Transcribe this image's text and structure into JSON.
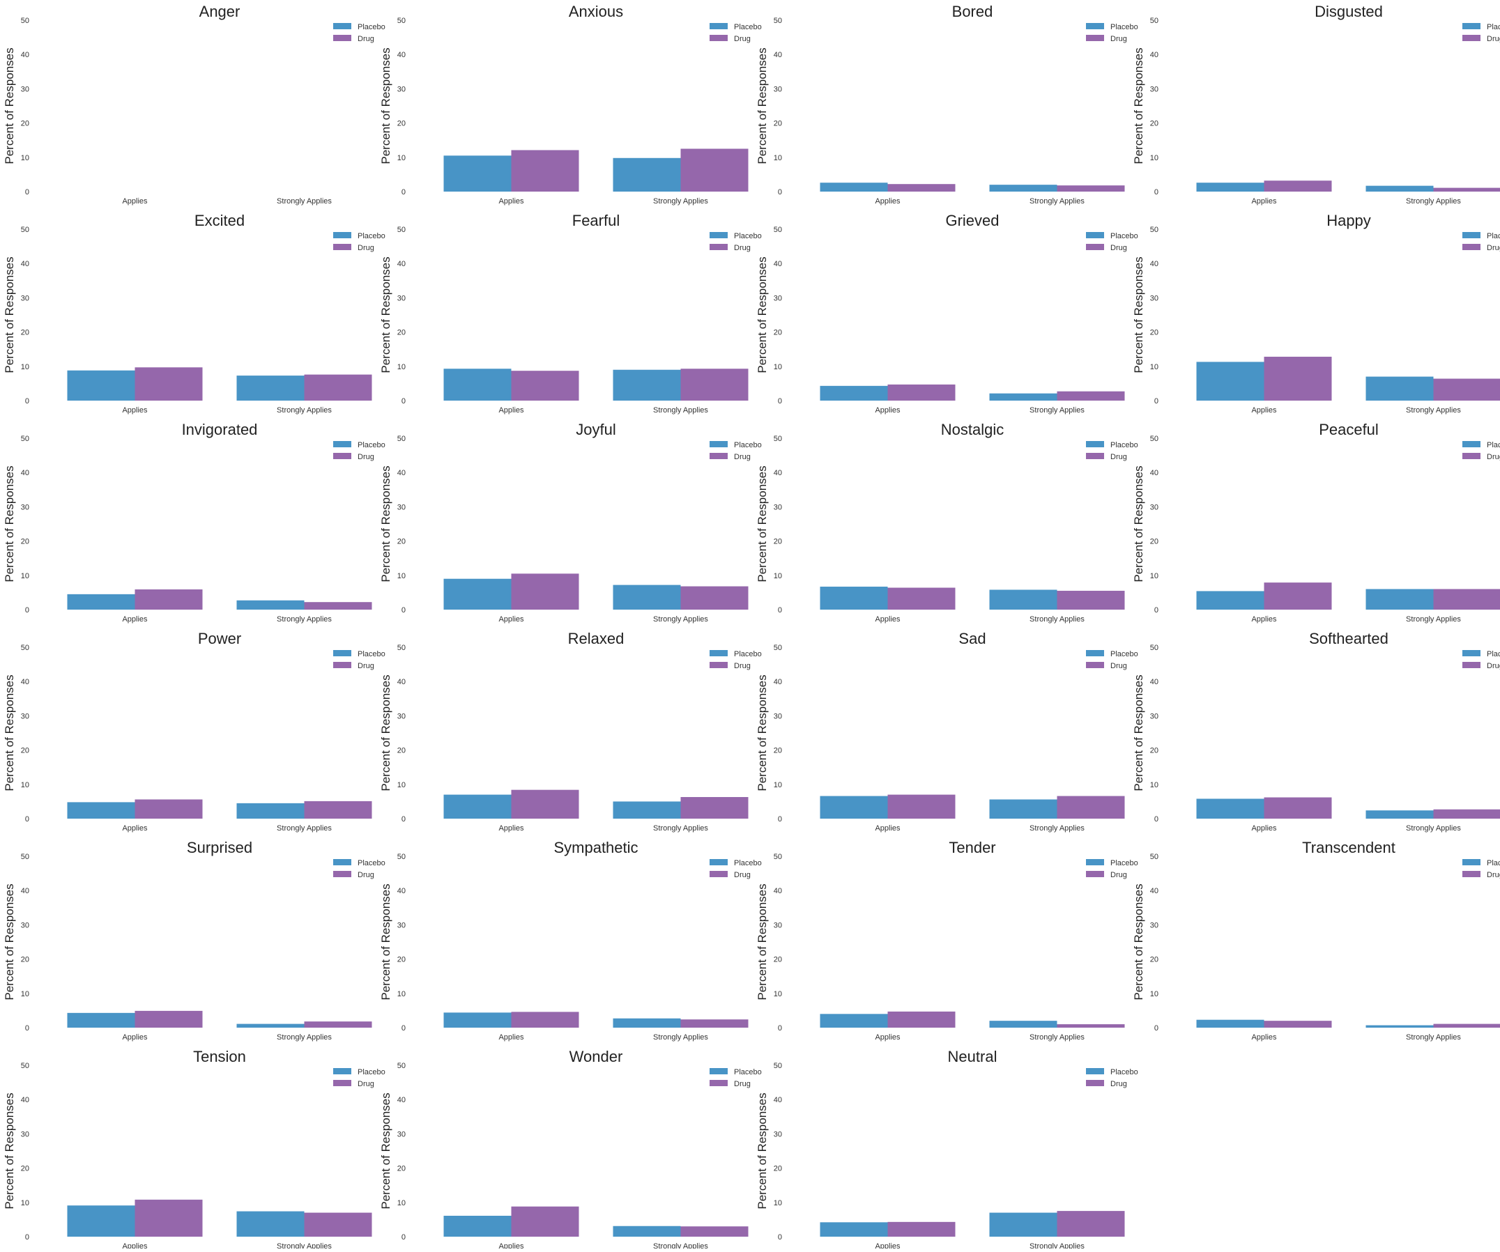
{
  "chart_data": {
    "type": "bar",
    "layout": "small-multiples",
    "shared": {
      "categories": [
        "Applies",
        "Strongly Applies"
      ],
      "series_names": [
        "Placebo",
        "Drug"
      ],
      "colors": {
        "Placebo": "#4894c6",
        "Drug": "#9567ab"
      },
      "ylabel": "Percent of Responses",
      "ylim": [
        0,
        50
      ],
      "yticks": [
        0,
        10,
        20,
        30,
        40,
        50
      ],
      "grid": false,
      "legend_position": "top-right"
    },
    "panels": [
      {
        "title": "Anger",
        "series": [
          {
            "name": "Placebo",
            "values": [
              0,
              0
            ]
          },
          {
            "name": "Drug",
            "values": [
              0,
              0
            ]
          }
        ]
      },
      {
        "title": "Anxious",
        "series": [
          {
            "name": "Placebo",
            "values": [
              10.5,
              9.8
            ]
          },
          {
            "name": "Drug",
            "values": [
              12.1,
              12.5
            ]
          }
        ]
      },
      {
        "title": "Bored",
        "series": [
          {
            "name": "Placebo",
            "values": [
              2.6,
              2.0
            ]
          },
          {
            "name": "Drug",
            "values": [
              2.2,
              1.8
            ]
          }
        ]
      },
      {
        "title": "Disgusted",
        "series": [
          {
            "name": "Placebo",
            "values": [
              2.6,
              1.7
            ]
          },
          {
            "name": "Drug",
            "values": [
              3.2,
              1.1
            ]
          }
        ]
      },
      {
        "title": "Excited",
        "series": [
          {
            "name": "Placebo",
            "values": [
              8.8,
              7.3
            ]
          },
          {
            "name": "Drug",
            "values": [
              9.7,
              7.6
            ]
          }
        ]
      },
      {
        "title": "Fearful",
        "series": [
          {
            "name": "Placebo",
            "values": [
              9.3,
              9.0
            ]
          },
          {
            "name": "Drug",
            "values": [
              8.7,
              9.3
            ]
          }
        ]
      },
      {
        "title": "Grieved",
        "series": [
          {
            "name": "Placebo",
            "values": [
              4.3,
              2.1
            ]
          },
          {
            "name": "Drug",
            "values": [
              4.7,
              2.7
            ]
          }
        ]
      },
      {
        "title": "Happy",
        "series": [
          {
            "name": "Placebo",
            "values": [
              11.3,
              7.0
            ]
          },
          {
            "name": "Drug",
            "values": [
              12.8,
              6.4
            ]
          }
        ]
      },
      {
        "title": "Invigorated",
        "series": [
          {
            "name": "Placebo",
            "values": [
              4.5,
              2.7
            ]
          },
          {
            "name": "Drug",
            "values": [
              5.9,
              2.2
            ]
          }
        ]
      },
      {
        "title": "Joyful",
        "series": [
          {
            "name": "Placebo",
            "values": [
              9.0,
              7.2
            ]
          },
          {
            "name": "Drug",
            "values": [
              10.5,
              6.8
            ]
          }
        ]
      },
      {
        "title": "Nostalgic",
        "series": [
          {
            "name": "Placebo",
            "values": [
              6.7,
              5.8
            ]
          },
          {
            "name": "Drug",
            "values": [
              6.4,
              5.5
            ]
          }
        ]
      },
      {
        "title": "Peaceful",
        "series": [
          {
            "name": "Placebo",
            "values": [
              5.4,
              6.0
            ]
          },
          {
            "name": "Drug",
            "values": [
              7.9,
              6.0
            ]
          }
        ]
      },
      {
        "title": "Power",
        "series": [
          {
            "name": "Placebo",
            "values": [
              4.8,
              4.5
            ]
          },
          {
            "name": "Drug",
            "values": [
              5.6,
              5.1
            ]
          }
        ]
      },
      {
        "title": "Relaxed",
        "series": [
          {
            "name": "Placebo",
            "values": [
              7.0,
              5.0
            ]
          },
          {
            "name": "Drug",
            "values": [
              8.4,
              6.3
            ]
          }
        ]
      },
      {
        "title": "Sad",
        "series": [
          {
            "name": "Placebo",
            "values": [
              6.6,
              5.6
            ]
          },
          {
            "name": "Drug",
            "values": [
              7.0,
              6.6
            ]
          }
        ]
      },
      {
        "title": "Softhearted",
        "series": [
          {
            "name": "Placebo",
            "values": [
              5.8,
              2.4
            ]
          },
          {
            "name": "Drug",
            "values": [
              6.2,
              2.7
            ]
          }
        ]
      },
      {
        "title": "Surprised",
        "series": [
          {
            "name": "Placebo",
            "values": [
              4.3,
              1.1
            ]
          },
          {
            "name": "Drug",
            "values": [
              4.9,
              1.8
            ]
          }
        ]
      },
      {
        "title": "Sympathetic",
        "series": [
          {
            "name": "Placebo",
            "values": [
              4.4,
              2.7
            ]
          },
          {
            "name": "Drug",
            "values": [
              4.6,
              2.4
            ]
          }
        ]
      },
      {
        "title": "Tender",
        "series": [
          {
            "name": "Placebo",
            "values": [
              4.0,
              2.0
            ]
          },
          {
            "name": "Drug",
            "values": [
              4.7,
              1.0
            ]
          }
        ]
      },
      {
        "title": "Transcendent",
        "series": [
          {
            "name": "Placebo",
            "values": [
              2.3,
              0.7
            ]
          },
          {
            "name": "Drug",
            "values": [
              2.0,
              1.1
            ]
          }
        ]
      },
      {
        "title": "Tension",
        "series": [
          {
            "name": "Placebo",
            "values": [
              9.1,
              7.4
            ]
          },
          {
            "name": "Drug",
            "values": [
              10.8,
              7.0
            ]
          }
        ]
      },
      {
        "title": "Wonder",
        "series": [
          {
            "name": "Placebo",
            "values": [
              6.1,
              3.1
            ]
          },
          {
            "name": "Drug",
            "values": [
              8.8,
              3.0
            ]
          }
        ]
      },
      {
        "title": "Neutral",
        "series": [
          {
            "name": "Placebo",
            "values": [
              4.2,
              7.0
            ]
          },
          {
            "name": "Drug",
            "values": [
              4.3,
              7.5
            ]
          }
        ]
      }
    ]
  }
}
